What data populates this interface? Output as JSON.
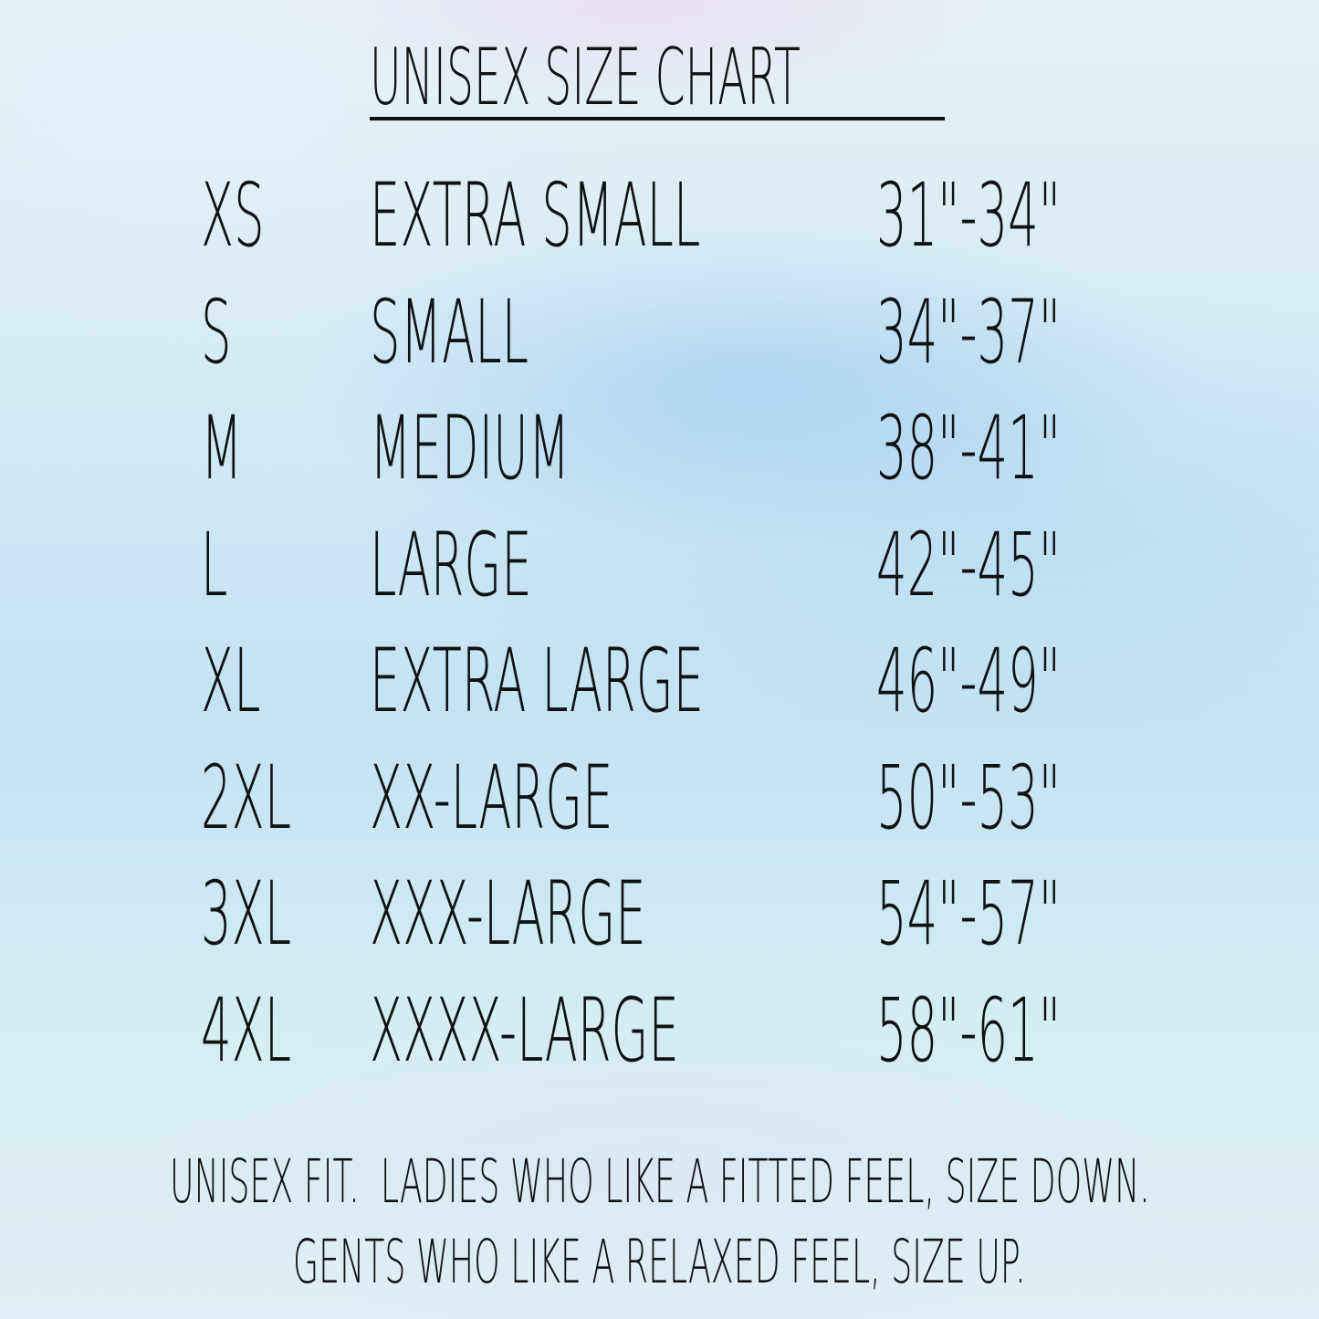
{
  "header": {
    "title": "UNISEX SIZE CHART"
  },
  "table": {
    "rows": [
      [
        "XS",
        "EXTRA SMALL",
        "31\"-34\""
      ],
      [
        "S",
        "SMALL",
        "34\"-37\""
      ],
      [
        "M",
        "MEDIUM",
        "38\"-41\""
      ],
      [
        "L",
        "LARGE",
        "42\"-45\""
      ],
      [
        "XL",
        "EXTRA LARGE",
        "46\"-49\""
      ],
      [
        "2XL",
        "XX-LARGE",
        "50\"-53\""
      ],
      [
        "3XL",
        "XXX-LARGE",
        "54\"-57\""
      ],
      [
        "4XL",
        "XXXX-LARGE",
        "58\"-61\""
      ]
    ]
  },
  "footer": {
    "lines": [
      "UNISEX FIT.  LADIES WHO LIKE A FITTED FEEL, SIZE DOWN.",
      "GENTS WHO LIKE A RELAXED FEEL, SIZE UP."
    ]
  }
}
